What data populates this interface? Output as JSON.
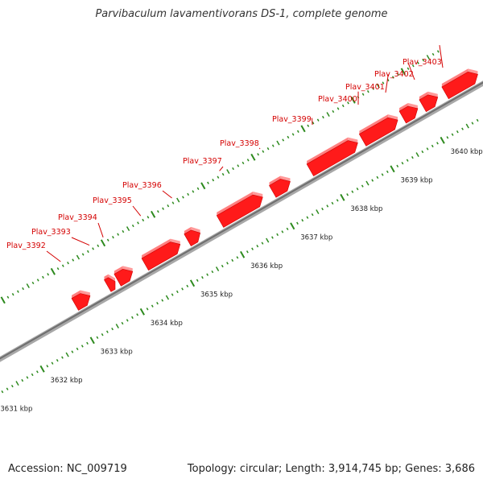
{
  "title": "Parvibaculum lavamentivorans DS-1, complete genome",
  "accession_text": "Accession: NC_009719",
  "stats_text": "Topology: circular; Length: 3,914,745 bp; Genes: 3,686",
  "colors": {
    "gene": "#ff1a1a",
    "gene_label": "#d40000",
    "backbone": "#8c8c8c",
    "tick": "#2d8a1e",
    "kbp_label": "#222222",
    "feature_blue": "#3d3d9e",
    "feature_green": "#9ee03c"
  },
  "genome_scale": {
    "range_kbp": [
      3630.2,
      3640.7
    ],
    "major_tick_interval_kbp": 1,
    "minor_tick_interval_kbp": 0.1
  },
  "kbp_labels": [
    "3631 kbp",
    "3632 kbp",
    "3633 kbp",
    "3634 kbp",
    "3635 kbp",
    "3636 kbp",
    "3637 kbp",
    "3638 kbp",
    "3639 kbp",
    "3640 kbp"
  ],
  "genes": [
    {
      "name": "Plav_3392",
      "start_kbp": 3633.05,
      "end_kbp": 3633.35
    },
    {
      "name": "Plav_3393",
      "start_kbp": 3633.7,
      "end_kbp": 3633.85
    },
    {
      "name": "Plav_3394",
      "start_kbp": 3633.9,
      "end_kbp": 3634.2
    },
    {
      "name": "Plav_3395",
      "start_kbp": 3634.45,
      "end_kbp": 3635.15
    },
    {
      "name": "Plav_3396",
      "start_kbp": 3635.3,
      "end_kbp": 3635.55
    },
    {
      "name": "Plav_3397",
      "start_kbp": 3635.95,
      "end_kbp": 3636.8
    },
    {
      "name": "Plav_3398",
      "start_kbp": 3637.0,
      "end_kbp": 3637.35
    },
    {
      "name": "Plav_3399",
      "start_kbp": 3637.75,
      "end_kbp": 3638.7
    },
    {
      "name": "Plav_3400",
      "start_kbp": 3638.8,
      "end_kbp": 3639.5
    },
    {
      "name": "Plav_3401",
      "start_kbp": 3639.6,
      "end_kbp": 3639.9
    },
    {
      "name": "Plav_3402",
      "start_kbp": 3640.0,
      "end_kbp": 3640.3
    },
    {
      "name": "Plav_3403",
      "start_kbp": 3640.45,
      "end_kbp": 3641.1
    }
  ]
}
